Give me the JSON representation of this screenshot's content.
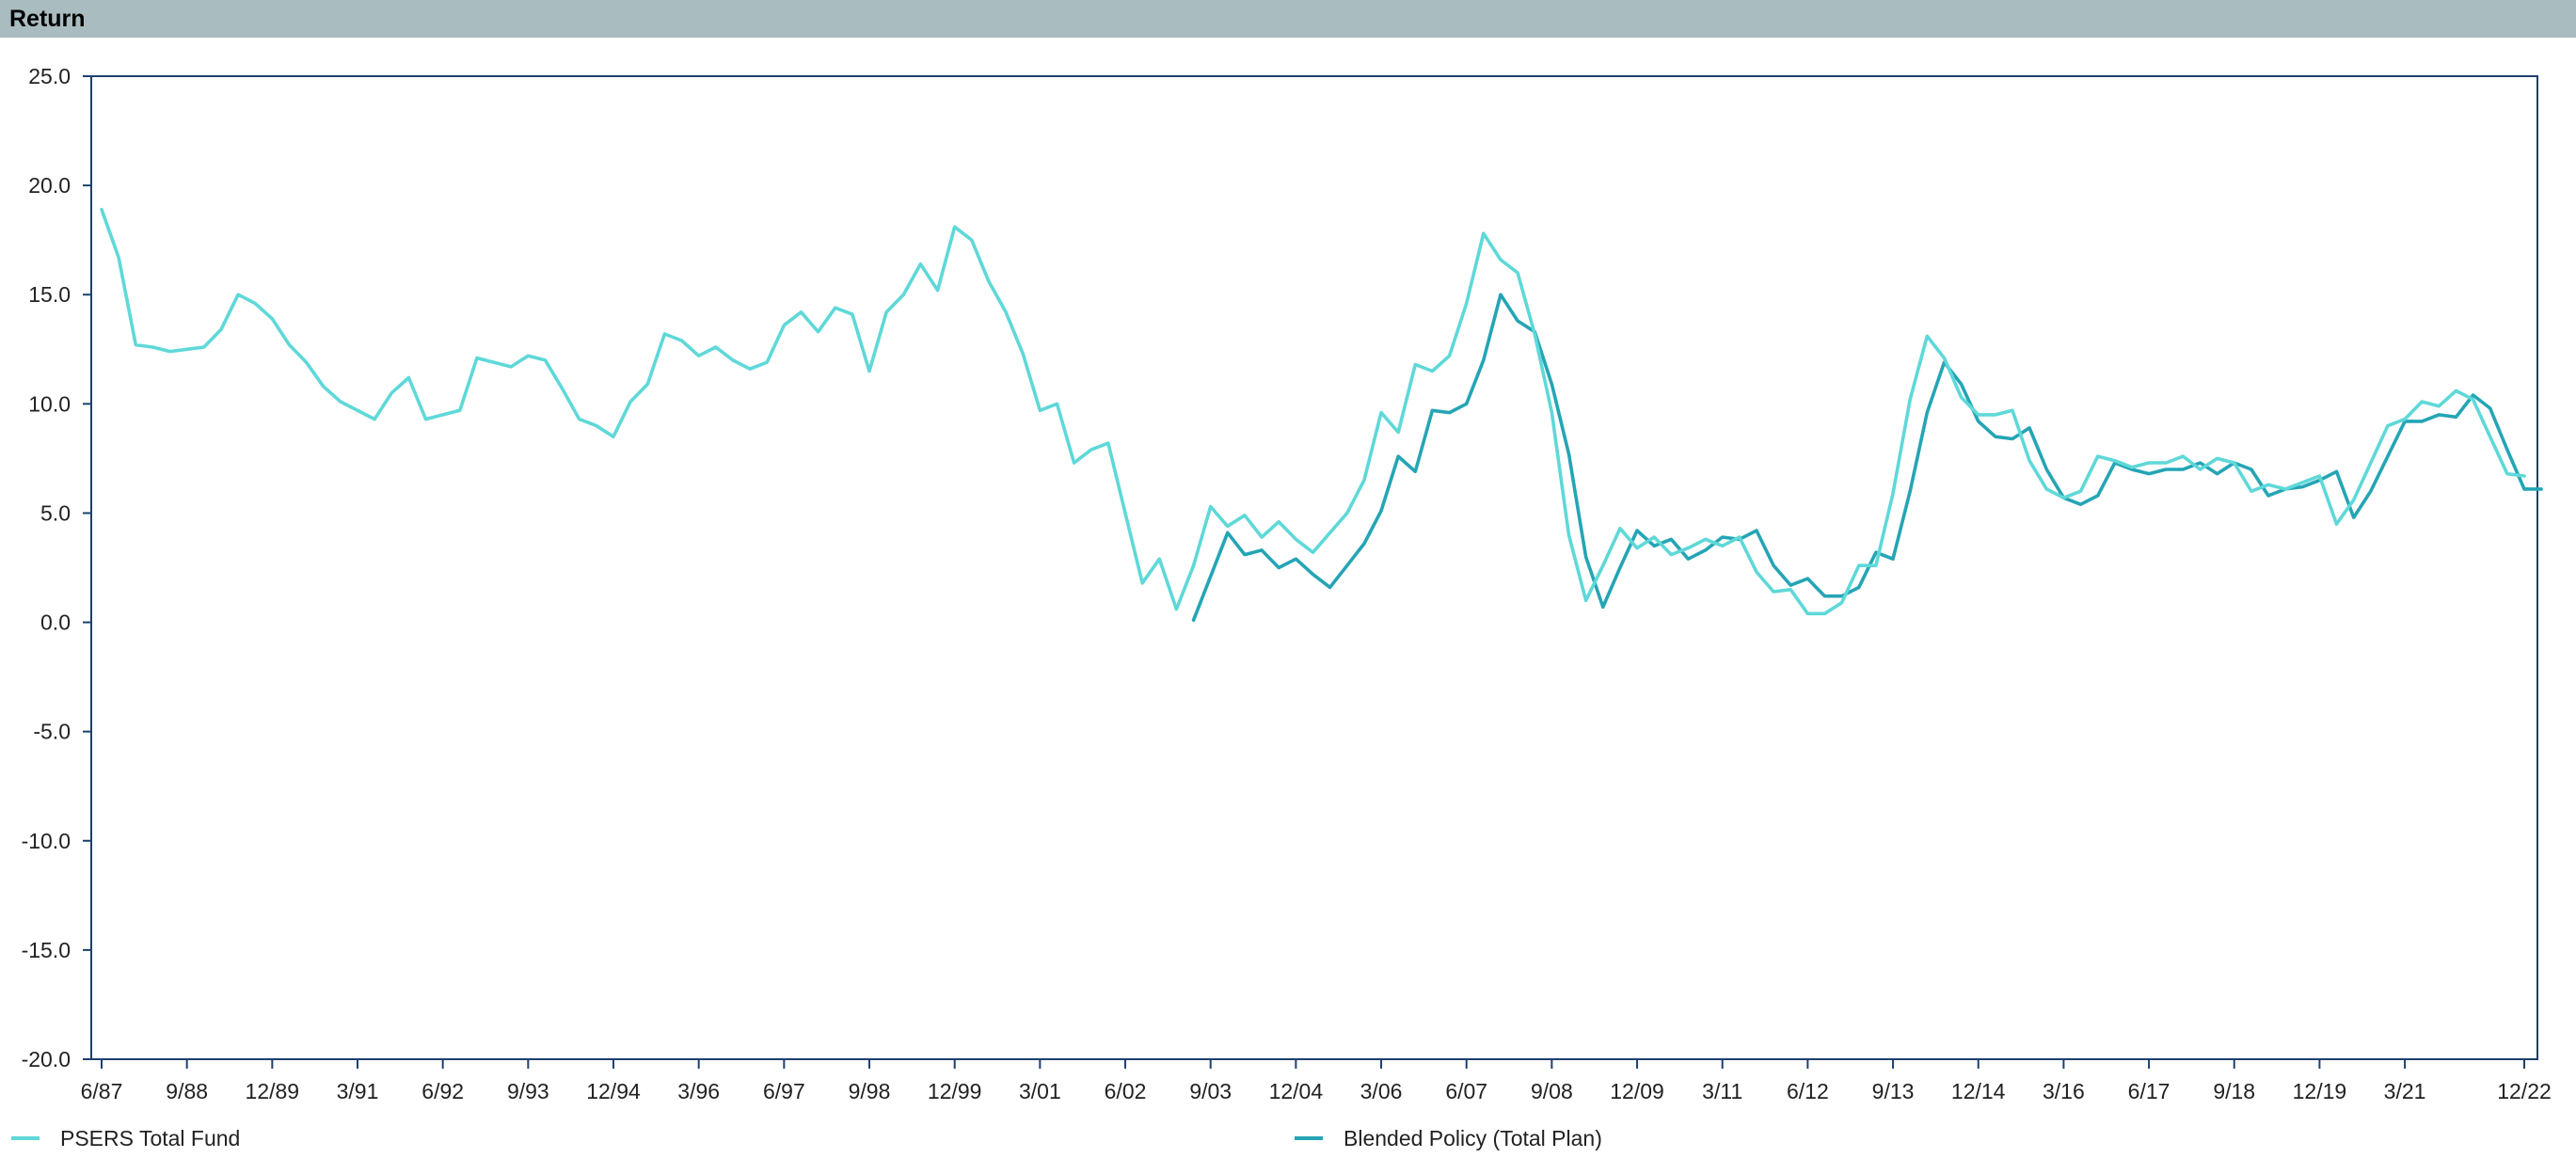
{
  "header": {
    "title": "Return"
  },
  "chart_data": {
    "type": "line",
    "title": "",
    "xlabel": "",
    "ylabel": "",
    "ylim": [
      -20,
      25
    ],
    "yticks": [
      "25.0",
      "20.0",
      "15.0",
      "10.0",
      "5.0",
      "0.0",
      "-5.0",
      "-10.0",
      "-15.0",
      "-20.0"
    ],
    "xticks": [
      "6/87",
      "9/88",
      "12/89",
      "3/91",
      "6/92",
      "9/93",
      "12/94",
      "3/96",
      "6/97",
      "9/98",
      "12/99",
      "3/01",
      "6/02",
      "9/03",
      "12/04",
      "3/06",
      "6/07",
      "9/08",
      "12/09",
      "3/11",
      "6/12",
      "9/13",
      "12/14",
      "3/16",
      "6/17",
      "9/18",
      "12/19",
      "3/21",
      "12/22"
    ],
    "x_start": "6/87",
    "x_end": "12/22",
    "x_step": "quarter",
    "grid": false,
    "legend_position": "bottom",
    "series": [
      {
        "name": "PSERS Total Fund",
        "color": "#5fd8d8",
        "start": "6/87",
        "values": [
          18.9,
          16.7,
          12.7,
          12.6,
          12.4,
          12.5,
          12.6,
          13.4,
          15.0,
          14.6,
          13.9,
          12.7,
          11.9,
          10.8,
          10.1,
          9.7,
          9.3,
          10.5,
          11.2,
          9.3,
          9.5,
          9.7,
          12.1,
          11.9,
          11.7,
          12.2,
          12.0,
          10.7,
          9.3,
          9.0,
          8.5,
          10.1,
          10.9,
          13.2,
          12.9,
          12.2,
          12.6,
          12.0,
          11.6,
          11.9,
          13.6,
          14.2,
          13.3,
          14.4,
          14.1,
          11.5,
          14.2,
          15.0,
          16.4,
          15.2,
          18.1,
          17.5,
          15.6,
          14.2,
          12.3,
          9.7,
          10.0,
          7.3,
          7.9,
          8.2,
          5.0,
          1.8,
          2.9,
          0.6,
          2.6,
          5.3,
          4.4,
          4.9,
          3.9,
          4.6,
          3.8,
          3.2,
          4.1,
          5.0,
          6.5,
          9.6,
          8.7,
          11.8,
          11.5,
          12.2,
          14.6,
          17.8,
          16.6,
          16.0,
          13.2,
          9.6,
          4.0,
          1.0,
          2.6,
          4.3,
          3.4,
          3.9,
          3.1,
          3.4,
          3.8,
          3.5,
          3.9,
          2.3,
          1.4,
          1.5,
          0.4,
          0.4,
          0.9,
          2.6,
          2.6,
          5.9,
          10.2,
          13.1,
          12.1,
          10.3,
          9.5,
          9.5,
          9.7,
          7.4,
          6.1,
          5.7,
          6.0,
          7.6,
          7.4,
          7.1,
          7.3,
          7.3,
          7.6,
          7.0,
          7.5,
          7.3,
          6.0,
          6.3,
          6.1,
          6.4,
          6.7,
          4.5,
          5.6,
          7.3,
          9.0,
          9.3,
          10.1,
          9.9,
          10.6,
          10.2,
          8.5,
          6.8,
          6.7
        ]
      },
      {
        "name": "Blended Policy (Total Plan)",
        "color": "#24a5b5",
        "start": "6/03",
        "values": [
          0.1,
          2.1,
          4.1,
          3.1,
          3.3,
          2.5,
          2.9,
          2.2,
          1.6,
          2.6,
          3.6,
          5.1,
          7.6,
          6.9,
          9.7,
          9.6,
          10.0,
          12.0,
          15.0,
          13.8,
          13.3,
          10.9,
          7.7,
          3.0,
          0.7,
          2.5,
          4.2,
          3.5,
          3.8,
          2.9,
          3.3,
          3.9,
          3.8,
          4.2,
          2.6,
          1.7,
          2.0,
          1.2,
          1.2,
          1.6,
          3.2,
          2.9,
          6.0,
          9.6,
          11.9,
          10.9,
          9.2,
          8.5,
          8.4,
          8.9,
          7.0,
          5.7,
          5.4,
          5.8,
          7.3,
          7.0,
          6.8,
          7.0,
          7.0,
          7.3,
          6.8,
          7.3,
          7.0,
          5.8,
          6.1,
          6.2,
          6.5,
          6.9,
          4.8,
          6.0,
          7.6,
          9.2,
          9.2,
          9.5,
          9.4,
          10.4,
          9.8,
          7.9,
          6.1,
          6.1
        ]
      }
    ]
  }
}
